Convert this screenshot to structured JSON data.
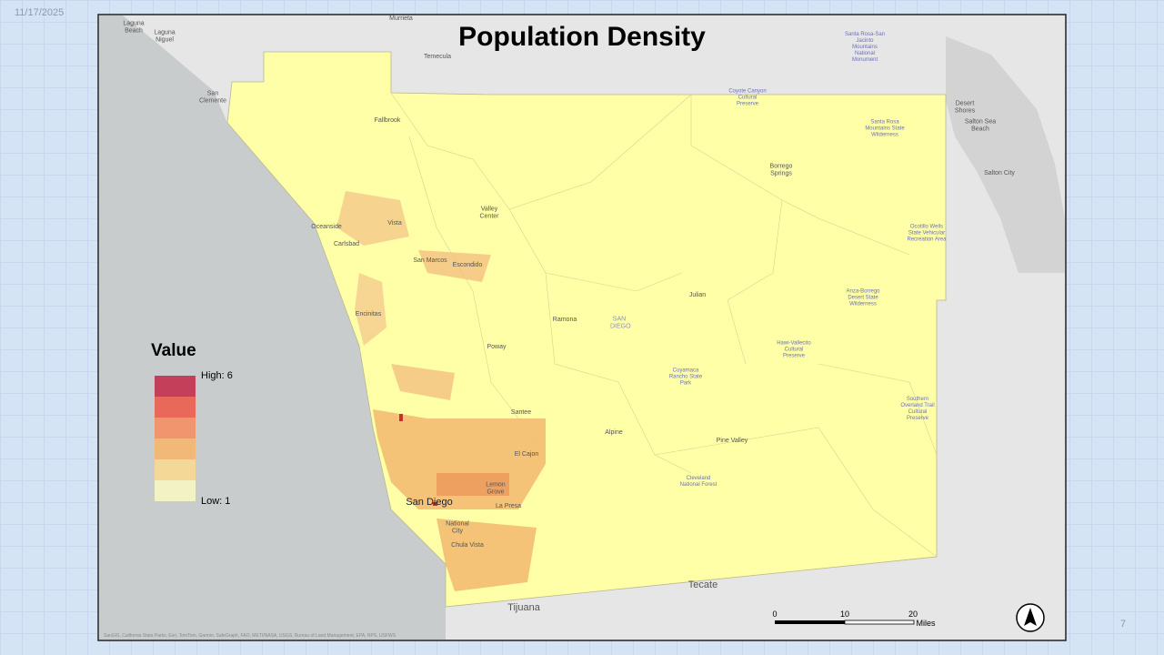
{
  "slide": {
    "date": "11/17/2025",
    "number": "7"
  },
  "map": {
    "title": "Population Density",
    "legend": {
      "title": "Value",
      "high": "High: 6",
      "low": "Low: 1"
    },
    "scale_bar": {
      "ticks": [
        0,
        10,
        20
      ],
      "unit": "Miles"
    },
    "places": [
      "Laguna Beach",
      "Laguna Niguel",
      "Murrieta",
      "Temecula",
      "San Clemente",
      "Fallbrook",
      "Oceanside",
      "Vista",
      "Carlsbad",
      "San Marcos",
      "Escondido",
      "Valley Center",
      "Encinitas",
      "Ramona",
      "SAN DIEGO",
      "Poway",
      "Santee",
      "El Cajon",
      "Lemon Grove",
      "La Presa",
      "National City",
      "Chula Vista",
      "Alpine",
      "Julian",
      "Borrego Springs",
      "Pine Valley",
      "Tecate",
      "Tijuana",
      "Salton City",
      "Desert Shores",
      "Salton Sea Beach",
      "San Diego"
    ],
    "preserves": [
      "Coyote Canyon Cultural Preserve",
      "Santa Rosa Mountains State Wilderness",
      "Ocotillo Wells State Vehicular Recreation Area",
      "Anza-Borrego Desert State Wilderness",
      "Hawi-Vallecito Cultural Preserve",
      "Cuyamaca Rancho State Park",
      "Cleveland National Forest",
      "Southern Overland Trail Cultural Preserve",
      "Santa Rosa-San Jacinto Mountains National Monument"
    ],
    "attribution": "SanGIS, California State Parks, Esri, TomTom, Garmin, SafeGraph, FAO, METI/NASA, USGS, Bureau of Land Management, EPA, NPS, USFWS"
  }
}
